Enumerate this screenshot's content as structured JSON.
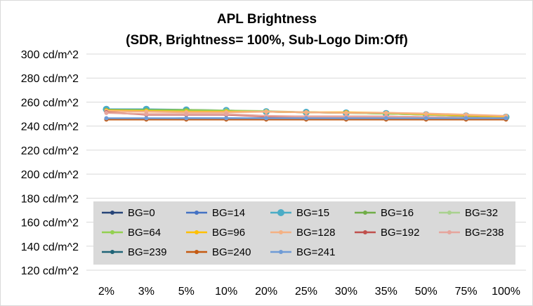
{
  "chart_data": {
    "type": "line",
    "title": "APL Brightness",
    "subtitle": "(SDR, Brightness= 100%, Sub-Logo Dim:Off)",
    "xlabel": "",
    "ylabel": "",
    "categories": [
      "2%",
      "3%",
      "5%",
      "10%",
      "20%",
      "25%",
      "30%",
      "35%",
      "50%",
      "75%",
      "100%"
    ],
    "ylim": [
      120,
      300
    ],
    "yticks": [
      120,
      140,
      160,
      180,
      200,
      220,
      240,
      260,
      280,
      300
    ],
    "ytick_labels": [
      "120 cd/m^2",
      "140 cd/m^2",
      "160 cd/m^2",
      "180 cd/m^2",
      "200 cd/m^2",
      "220 cd/m^2",
      "240 cd/m^2",
      "260 cd/m^2",
      "280 cd/m^2",
      "300 cd/m^2"
    ],
    "grid": true,
    "legend_position": "bottom-inside",
    "series": [
      {
        "name": "BG=0",
        "color": "#264478",
        "values": [
          246,
          246,
          246,
          246,
          246,
          246,
          246,
          246,
          246,
          246,
          246
        ]
      },
      {
        "name": "BG=14",
        "color": "#4472c4",
        "values": [
          246,
          246,
          246.5,
          246.5,
          246.5,
          246.5,
          246.5,
          246.5,
          246.5,
          246.5,
          246.5
        ]
      },
      {
        "name": "BG=15",
        "color": "#4bacc6",
        "values": [
          254,
          254,
          253.5,
          253,
          252,
          251.5,
          251,
          250.5,
          249.5,
          248.5,
          247.5
        ]
      },
      {
        "name": "BG=16",
        "color": "#70ad47",
        "values": [
          253.5,
          253.5,
          253.5,
          253,
          252,
          251.5,
          251,
          250.5,
          249.5,
          248.5,
          247.5
        ]
      },
      {
        "name": "BG=32",
        "color": "#a9d18e",
        "values": [
          253,
          253,
          253,
          253,
          252.5,
          251.5,
          251,
          250.5,
          249.5,
          249,
          248
        ]
      },
      {
        "name": "BG=64",
        "color": "#92d050",
        "values": [
          253,
          253,
          253,
          252.5,
          252,
          251.5,
          251,
          250.5,
          250,
          249,
          248
        ]
      },
      {
        "name": "BG=96",
        "color": "#ffc000",
        "values": [
          253,
          252.5,
          252,
          252,
          252,
          251.5,
          251.5,
          251,
          250,
          249,
          248
        ]
      },
      {
        "name": "BG=128",
        "color": "#f4b183",
        "values": [
          252.5,
          252,
          251.5,
          251.5,
          252,
          251.5,
          251,
          251,
          250.5,
          249.5,
          248.5
        ]
      },
      {
        "name": "BG=192",
        "color": "#c0504d",
        "values": [
          251.5,
          249.5,
          249.5,
          249.5,
          248,
          248,
          248,
          248,
          247.5,
          247,
          246.5
        ]
      },
      {
        "name": "BG=238",
        "color": "#e6a59d",
        "values": [
          251,
          250,
          250,
          250,
          248.5,
          248,
          248,
          248,
          247.5,
          247,
          246.5
        ]
      },
      {
        "name": "BG=239",
        "color": "#1f6477",
        "values": [
          246,
          246,
          246,
          246,
          246,
          246,
          246,
          246,
          246,
          246,
          246
        ]
      },
      {
        "name": "BG=240",
        "color": "#c55a11",
        "values": [
          245.5,
          245.5,
          245.5,
          245.5,
          245.5,
          245.5,
          245.5,
          245.5,
          245.5,
          245.5,
          245.5
        ]
      },
      {
        "name": "BG=241",
        "color": "#6f9bd6",
        "values": [
          246.5,
          246.5,
          246.5,
          246.5,
          246.5,
          246.5,
          246.5,
          246.5,
          246.5,
          246.5,
          246.5
        ]
      }
    ]
  }
}
